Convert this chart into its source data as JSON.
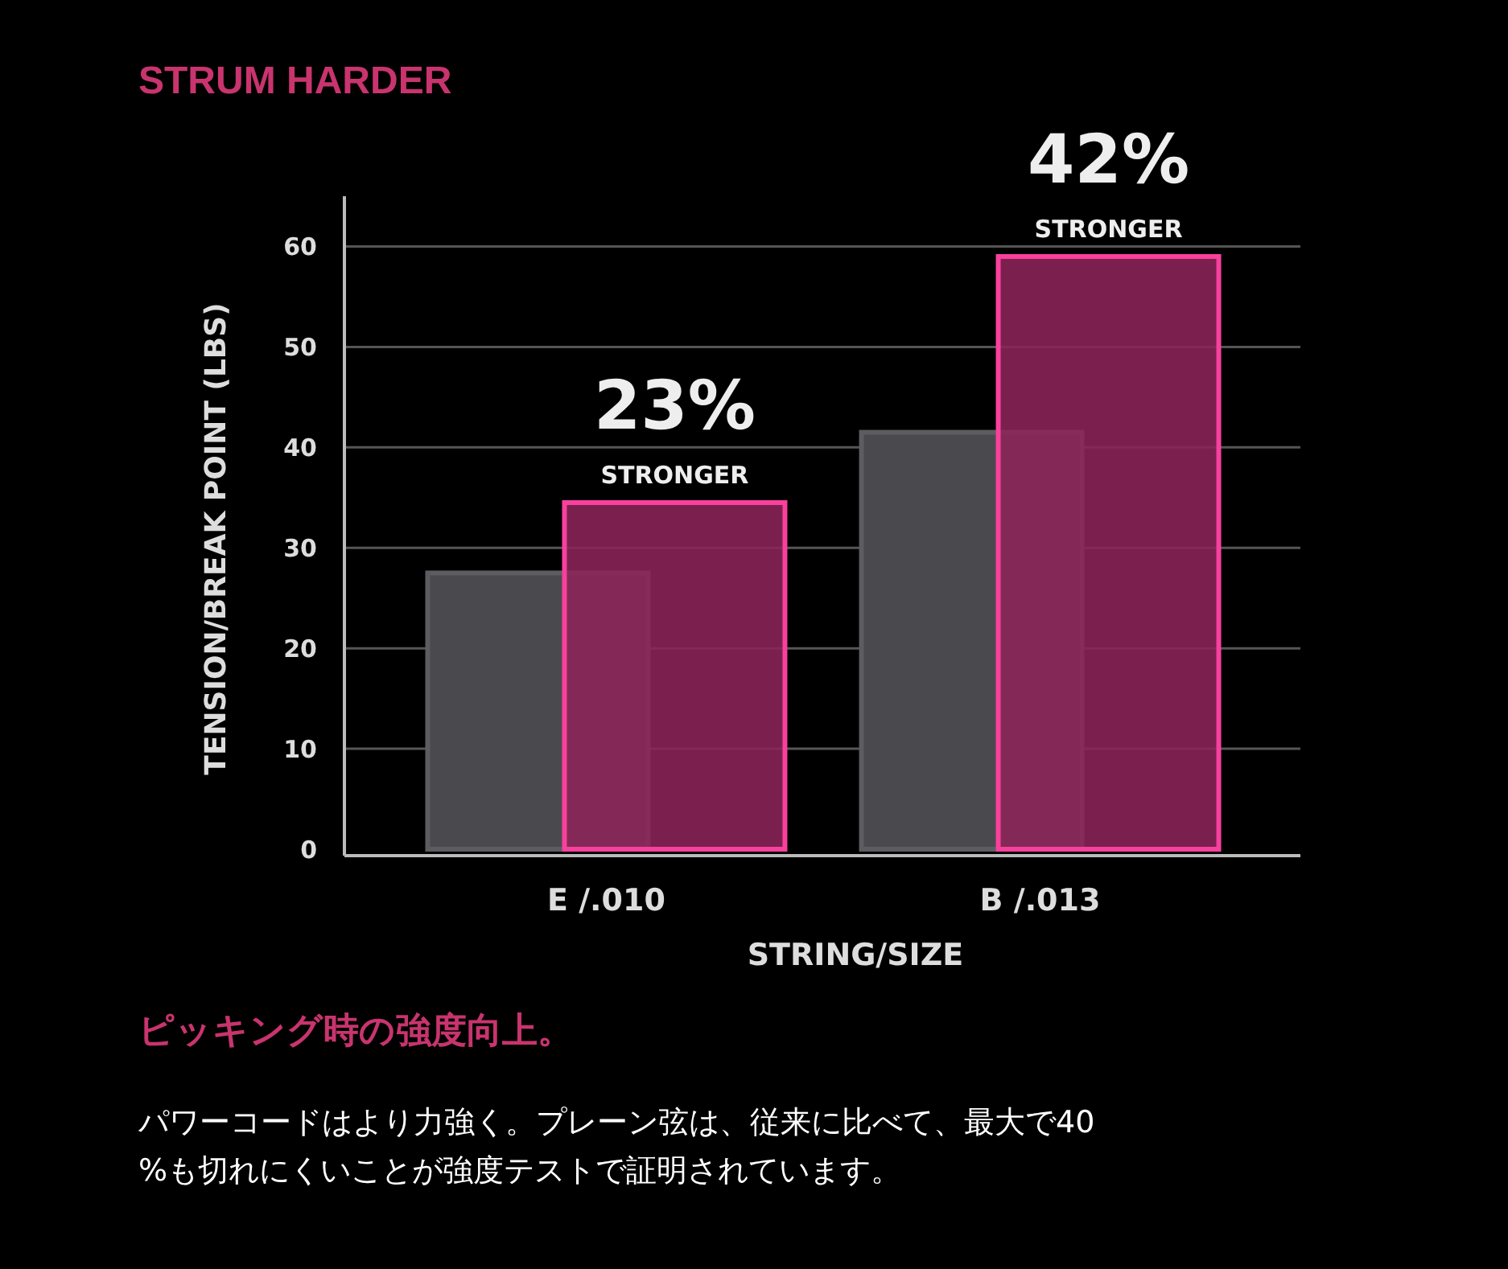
{
  "chart_data": {
    "type": "bar",
    "title": "STRUM HARDER",
    "xlabel": "STRING/SIZE",
    "ylabel": "TENSION/BREAK POINT (LBS)",
    "categories": [
      "E /.010",
      "B /.013"
    ],
    "series": [
      {
        "color": "#4a4a4e",
        "values": [
          27.5,
          41.5
        ]
      },
      {
        "color": "#8c2459",
        "values": [
          34.5,
          59
        ]
      }
    ],
    "ylim": [
      0,
      65
    ],
    "yticks": [
      0,
      10,
      20,
      30,
      40,
      50,
      60
    ],
    "grid": "y",
    "annotations": [
      {
        "text": "23%",
        "x": "E /.010",
        "y": 34.5
      },
      {
        "text": "STRONGER",
        "x": "E /.010",
        "y": 34.5
      },
      {
        "text": "42%",
        "x": "B /.013",
        "y": 59
      },
      {
        "text": "STRONGER",
        "x": "B /.013",
        "y": 59
      },
      "ピッキング時の強度向上。",
      "パワーコードはより力強く。プレーン弦は、従来に比べて、最大で40%も切れにくいことが強度テストで証明されています。"
    ]
  }
}
